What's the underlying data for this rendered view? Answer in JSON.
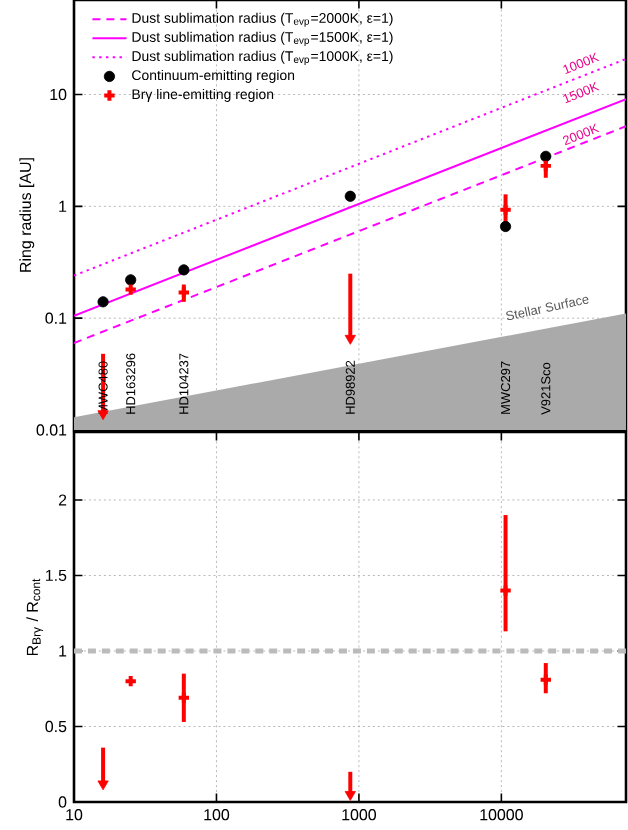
{
  "chart_data": [
    {
      "type": "scatter",
      "ylabel": "Ring radius [AU]",
      "log": "xy",
      "grid": true,
      "legend": "top left",
      "tick_labels": "y",
      "xlim": [
        10,
        75000
      ],
      "ylim": [
        0.01,
        70
      ],
      "xticks": [
        10,
        100,
        1000,
        10000
      ],
      "yticks": [
        0.01,
        0.1,
        1,
        10
      ],
      "series": [
        {
          "type": "line",
          "name": "Dust sublimation radius (T$_{evp}$=2000K, ε=1)",
          "color": "#ff00ff",
          "line_style": "dashed",
          "x": [
            10,
            75000
          ],
          "values": [
            0.06,
            5.2
          ]
        },
        {
          "type": "line",
          "name": "Dust sublimation radius (T$_{evp}$=1500K, ε=1)",
          "color": "#ff00ff",
          "line_style": "solid",
          "x": [
            10,
            75000
          ],
          "values": [
            0.105,
            9.1
          ]
        },
        {
          "type": "line",
          "name": "Dust sublimation radius (T$_{evp}$=1000K, ε=1)",
          "color": "#ff00ff",
          "line_style": "dotted",
          "x": [
            10,
            75000
          ],
          "values": [
            0.24,
            20.8
          ]
        },
        {
          "name": "Continuum-emitting region",
          "color": "#000000",
          "marker": "circle",
          "x": [
            16,
            25,
            59,
            870,
            10700,
            20500
          ],
          "values": [
            0.14,
            0.22,
            0.27,
            1.23,
            0.66,
            2.8
          ]
        },
        {
          "name": "Brγ line-emitting region",
          "color": "#ff0000",
          "marker": "cross",
          "x": [
            25,
            59,
            10700,
            20500
          ],
          "values": [
            0.18,
            0.17,
            0.93,
            2.3
          ],
          "errors": [
            null,
            [
              0.14,
              0.2
            ],
            [
              0.72,
              1.28
            ],
            [
              1.8,
              2.9
            ]
          ]
        },
        {
          "color": "#ff0000",
          "marker": "triangle",
          "x": [
            16,
            870
          ],
          "values": [
            0.014,
            0.066
          ],
          "errors": [
            [
              0.014,
              0.048
            ],
            [
              0.066,
              0.25
            ]
          ]
        },
        {
          "type": "area",
          "color": "#aaaaaa",
          "x": [
            10,
            75000
          ],
          "values": [
            0.013,
            0.11
          ]
        }
      ],
      "annotations": [
        "1000K",
        "1500K",
        "2000K",
        "Stellar Surface",
        "MWC480",
        "HD163296",
        "HD104237",
        "HD98922",
        "MWC297",
        "V921Sco"
      ]
    },
    {
      "type": "scatter",
      "ylabel": "R$_{Brγ}$ / R$_{cont}$",
      "log": "x",
      "grid": true,
      "xlim": [
        10,
        75000
      ],
      "ylim": [
        0,
        2.45
      ],
      "xticks": [
        10,
        100,
        1000,
        10000
      ],
      "yticks": [
        0,
        0.5,
        1,
        1.5,
        2
      ],
      "series": [
        {
          "color": "#ff0000",
          "marker": "cross",
          "x": [
            25,
            59,
            10700,
            20500
          ],
          "values": [
            0.8,
            0.69,
            1.4,
            0.81
          ],
          "errors": [
            null,
            [
              0.53,
              0.85
            ],
            [
              1.13,
              1.9
            ],
            [
              0.72,
              0.92
            ]
          ]
        },
        {
          "color": "#ff0000",
          "marker": "triangle",
          "x": [
            16,
            870
          ],
          "values": [
            0.12,
            0.05
          ],
          "errors": [
            [
              0.12,
              0.36
            ],
            [
              0.05,
              0.2
            ]
          ]
        }
      ],
      "ref_lines": [
        {
          "axis": "y",
          "value": 1,
          "color": "#bbbbbb",
          "line_style": "dashed"
        }
      ]
    }
  ]
}
